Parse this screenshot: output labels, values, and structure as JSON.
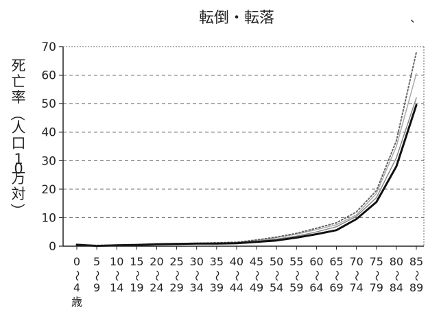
{
  "chart_data": {
    "type": "line",
    "title": "転倒・転落",
    "ylabel": "死亡率（人口10万対）",
    "corner_mark": "、",
    "ylim": [
      0,
      70
    ],
    "yticks": [
      "0",
      "10",
      "20",
      "30",
      "40",
      "50",
      "60",
      "70"
    ],
    "grid": "horizontal-dashed",
    "categories": [
      {
        "top": "0",
        "bottom": "4"
      },
      {
        "top": "5",
        "bottom": "9"
      },
      {
        "top": "10",
        "bottom": "14"
      },
      {
        "top": "15",
        "bottom": "19"
      },
      {
        "top": "20",
        "bottom": "24"
      },
      {
        "top": "25",
        "bottom": "29"
      },
      {
        "top": "30",
        "bottom": "34"
      },
      {
        "top": "35",
        "bottom": "39"
      },
      {
        "top": "40",
        "bottom": "44"
      },
      {
        "top": "45",
        "bottom": "49"
      },
      {
        "top": "50",
        "bottom": "54"
      },
      {
        "top": "55",
        "bottom": "59"
      },
      {
        "top": "60",
        "bottom": "64"
      },
      {
        "top": "65",
        "bottom": "69"
      },
      {
        "top": "70",
        "bottom": "74"
      },
      {
        "top": "75",
        "bottom": "79"
      },
      {
        "top": "80",
        "bottom": "84"
      },
      {
        "top": "85",
        "bottom": "89"
      }
    ],
    "range_mark": "〜",
    "age_unit": "歳",
    "series": [
      {
        "values": [
          0.5,
          0.1,
          0.3,
          0.4,
          0.7,
          0.8,
          0.9,
          0.9,
          1.0,
          1.5,
          2.0,
          3.0,
          4.2,
          5.6,
          9.5,
          15.5,
          28.0,
          49.5
        ],
        "color": "#111111",
        "style": "solid",
        "width": 3
      },
      {
        "values": [
          0.4,
          0.2,
          0.3,
          0.5,
          0.6,
          0.7,
          0.8,
          1.0,
          1.1,
          1.8,
          2.5,
          3.5,
          5.0,
          6.8,
          10.5,
          17.0,
          31.0,
          52.0
        ],
        "color": "#888888",
        "style": "solid",
        "width": 1.5
      },
      {
        "values": [
          0.3,
          0.2,
          0.4,
          0.5,
          0.6,
          0.8,
          0.9,
          1.1,
          1.3,
          2.0,
          3.0,
          4.2,
          5.8,
          7.5,
          11.0,
          18.5,
          35.0,
          60.5
        ],
        "color": "#aaaaaa",
        "style": "solid",
        "width": 1.5
      },
      {
        "values": [
          0.4,
          0.3,
          0.4,
          0.6,
          0.7,
          0.9,
          1.0,
          1.2,
          1.4,
          2.2,
          3.2,
          4.5,
          6.3,
          8.2,
          12.0,
          19.5,
          37.0,
          68.0
        ],
        "color": "#666666",
        "style": "dotted",
        "width": 2
      }
    ]
  }
}
